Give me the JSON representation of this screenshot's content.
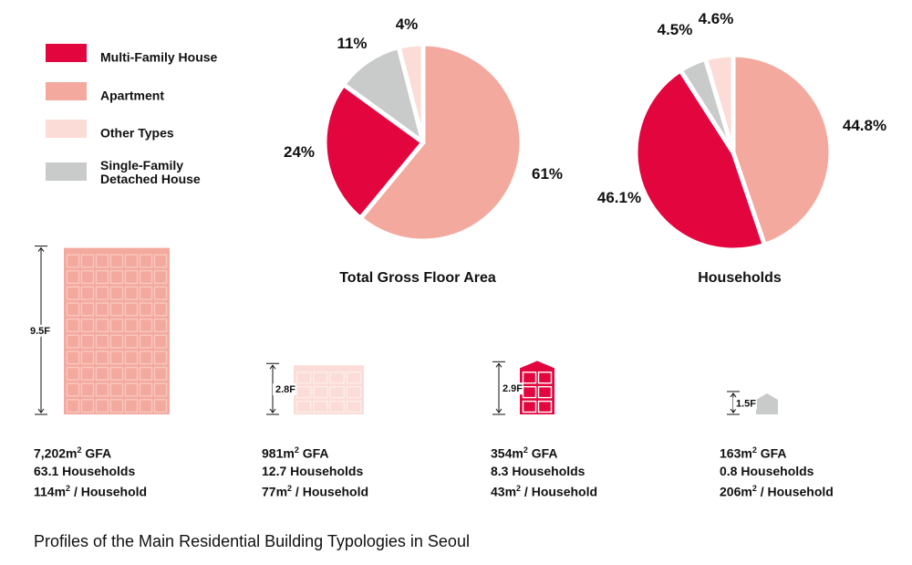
{
  "colors": {
    "multi_family": "#e3063e",
    "apartment": "#f3a99e",
    "other": "#fbdcd6",
    "single_family": "#c9caca"
  },
  "legend": [
    {
      "key": "multi_family",
      "label": "Multi-Family House"
    },
    {
      "key": "apartment",
      "label": "Apartment"
    },
    {
      "key": "other",
      "label": "Other Types"
    },
    {
      "key": "single_family",
      "label": "Single-Family\nDetached House"
    }
  ],
  "chart_data": [
    {
      "type": "pie",
      "title": "Total Gross Floor Area",
      "slices": [
        {
          "key": "apartment",
          "label": "61%",
          "value": 61
        },
        {
          "key": "multi_family",
          "label": "24%",
          "value": 24
        },
        {
          "key": "single_family",
          "label": "11%",
          "value": 11
        },
        {
          "key": "other",
          "label": "4%",
          "value": 4
        }
      ]
    },
    {
      "type": "pie",
      "title": "Households",
      "slices": [
        {
          "key": "apartment",
          "label": "44.8%",
          "value": 44.8
        },
        {
          "key": "multi_family",
          "label": "46.1%",
          "value": 46.1
        },
        {
          "key": "single_family",
          "label": "4.5%",
          "value": 4.5
        },
        {
          "key": "other",
          "label": "4.6%",
          "value": 4.6
        }
      ]
    }
  ],
  "buildings": [
    {
      "key": "apartment",
      "floors": 9.5,
      "floor_label": "9.5F",
      "gfa": "7,202m",
      "households": "63.1 Households",
      "per_household": "114m",
      "per_household_suffix": " / Household",
      "gfa_suffix": " GFA"
    },
    {
      "key": "other",
      "floors": 2.8,
      "floor_label": "2.8F",
      "gfa": "981m",
      "households": "12.7 Households",
      "per_household": "77m",
      "per_household_suffix": " / Household",
      "gfa_suffix": " GFA"
    },
    {
      "key": "multi_family",
      "floors": 2.9,
      "floor_label": "2.9F",
      "gfa": "354m",
      "households": "8.3 Households",
      "per_household": "43m",
      "per_household_suffix": " / Household",
      "gfa_suffix": " GFA"
    },
    {
      "key": "single_family",
      "floors": 1.5,
      "floor_label": "1.5F",
      "gfa": "163m",
      "households": "0.8 Households",
      "per_household": "206m",
      "per_household_suffix": " / Household",
      "gfa_suffix": " GFA"
    }
  ],
  "caption": "Profiles of the Main Residential Building Typologies in Seoul"
}
